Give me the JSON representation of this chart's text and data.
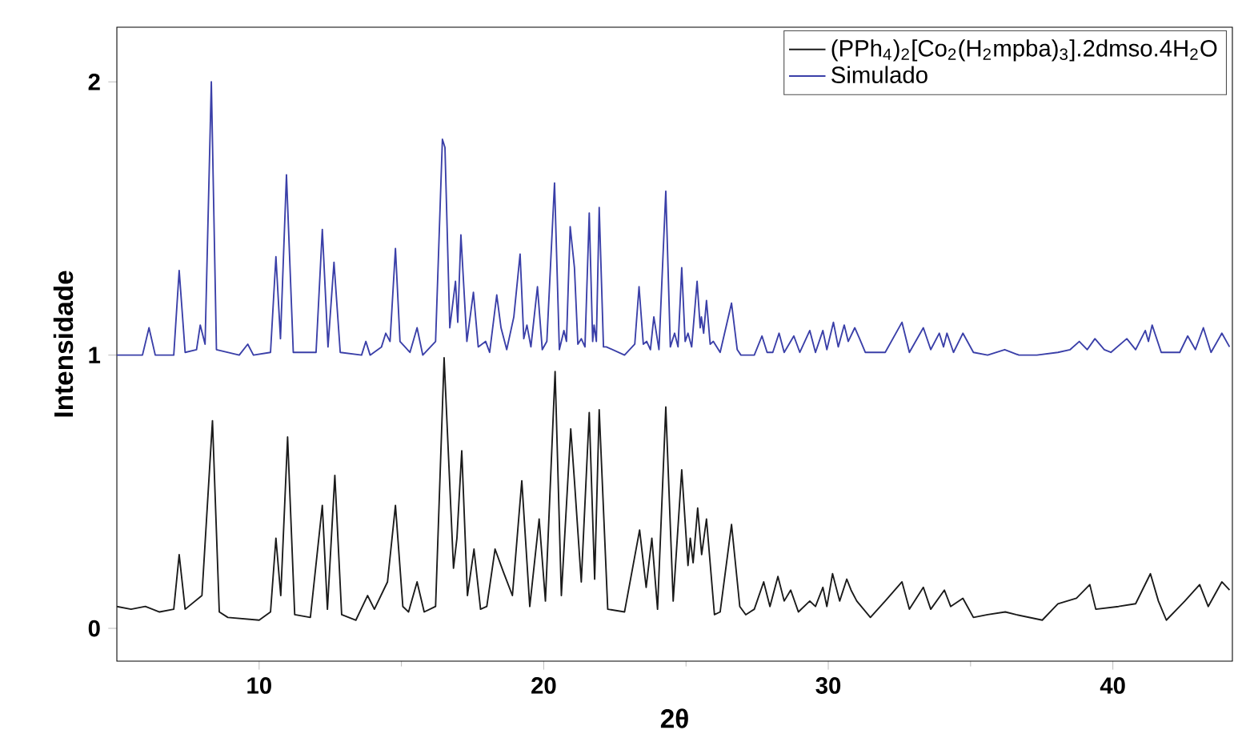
{
  "chart_data": {
    "type": "line",
    "xlabel": "2θ",
    "ylabel": "Intensidade",
    "xlim": [
      5,
      44.2
    ],
    "ylim": [
      -0.12,
      2.2
    ],
    "xticks": [
      10,
      20,
      30,
      40
    ],
    "yticks": [
      0,
      1,
      2
    ],
    "legend": "top right",
    "grid": false,
    "series": [
      {
        "name": "(PPh$_{4}$)$_{2}$[Co$_{2}$(H$_{2}$mpba)$_{3}$].2dmso.4H$_{2}$O",
        "color": "#1a1a1a",
        "x": [
          5.0,
          5.5,
          6.0,
          6.5,
          7.0,
          7.19,
          7.4,
          7.99,
          8.36,
          8.6,
          8.9,
          10.0,
          10.4,
          10.59,
          10.76,
          11.0,
          11.25,
          11.8,
          12.22,
          12.4,
          12.66,
          12.9,
          13.4,
          13.81,
          14.05,
          14.51,
          14.79,
          15.05,
          15.25,
          15.55,
          15.8,
          16.2,
          16.5,
          16.83,
          16.95,
          17.12,
          17.32,
          17.55,
          17.78,
          18.0,
          18.29,
          18.57,
          18.9,
          19.23,
          19.51,
          19.84,
          20.06,
          20.4,
          20.62,
          20.95,
          21.08,
          21.32,
          21.6,
          21.79,
          21.95,
          22.25,
          22.84,
          23.37,
          23.6,
          23.8,
          24.0,
          24.29,
          24.55,
          24.85,
          25.07,
          25.15,
          25.25,
          25.41,
          25.55,
          25.72,
          26.0,
          26.2,
          26.6,
          26.89,
          27.1,
          27.4,
          27.73,
          27.95,
          28.23,
          28.45,
          28.68,
          28.95,
          29.35,
          29.55,
          29.81,
          29.95,
          30.15,
          30.4,
          30.65,
          30.8,
          31.0,
          31.48,
          32.0,
          32.59,
          32.85,
          33.34,
          33.6,
          34.08,
          34.3,
          34.73,
          35.1,
          35.6,
          36.22,
          36.6,
          37.52,
          38.07,
          38.72,
          39.19,
          39.4,
          40.2,
          40.8,
          41.32,
          41.6,
          41.88,
          42.53,
          43.05,
          43.35,
          43.83,
          44.1
        ],
        "values": [
          0.08,
          0.07,
          0.08,
          0.06,
          0.07,
          0.27,
          0.07,
          0.12,
          0.76,
          0.06,
          0.04,
          0.03,
          0.06,
          0.33,
          0.12,
          0.7,
          0.05,
          0.04,
          0.45,
          0.07,
          0.56,
          0.05,
          0.03,
          0.12,
          0.07,
          0.17,
          0.45,
          0.08,
          0.06,
          0.17,
          0.06,
          0.08,
          0.99,
          0.22,
          0.33,
          0.65,
          0.12,
          0.29,
          0.07,
          0.08,
          0.29,
          0.21,
          0.12,
          0.54,
          0.08,
          0.4,
          0.1,
          0.94,
          0.12,
          0.73,
          0.54,
          0.17,
          0.79,
          0.18,
          0.8,
          0.07,
          0.06,
          0.36,
          0.15,
          0.33,
          0.07,
          0.81,
          0.1,
          0.58,
          0.23,
          0.33,
          0.24,
          0.44,
          0.27,
          0.4,
          0.05,
          0.06,
          0.38,
          0.08,
          0.05,
          0.07,
          0.17,
          0.08,
          0.19,
          0.1,
          0.14,
          0.06,
          0.1,
          0.08,
          0.15,
          0.08,
          0.2,
          0.1,
          0.18,
          0.14,
          0.1,
          0.04,
          0.1,
          0.17,
          0.07,
          0.15,
          0.07,
          0.14,
          0.08,
          0.11,
          0.04,
          0.05,
          0.06,
          0.05,
          0.03,
          0.09,
          0.11,
          0.16,
          0.07,
          0.08,
          0.09,
          0.2,
          0.1,
          0.03,
          0.1,
          0.16,
          0.08,
          0.17,
          0.14
        ]
      },
      {
        "name": "Simulado",
        "color": "#3a3fa8",
        "x": [
          5.0,
          5.9,
          6.13,
          6.35,
          7.0,
          7.19,
          7.4,
          7.8,
          7.93,
          8.1,
          8.32,
          8.5,
          9.3,
          9.6,
          9.8,
          10.4,
          10.59,
          10.75,
          10.96,
          11.2,
          12.0,
          12.22,
          12.42,
          12.63,
          12.85,
          13.6,
          13.75,
          13.9,
          14.3,
          14.45,
          14.6,
          14.79,
          14.95,
          15.3,
          15.55,
          15.75,
          16.2,
          16.44,
          16.53,
          16.7,
          16.9,
          16.98,
          17.09,
          17.3,
          17.53,
          17.7,
          17.96,
          18.1,
          18.35,
          18.5,
          18.7,
          18.95,
          19.17,
          19.3,
          19.41,
          19.55,
          19.78,
          19.95,
          20.11,
          20.38,
          20.55,
          20.71,
          20.8,
          20.93,
          21.08,
          21.2,
          21.32,
          21.45,
          21.6,
          21.72,
          21.77,
          21.85,
          21.95,
          22.1,
          22.2,
          22.84,
          23.2,
          23.35,
          23.5,
          23.62,
          23.75,
          23.87,
          24.05,
          24.29,
          24.45,
          24.6,
          24.72,
          24.85,
          24.97,
          25.07,
          25.2,
          25.39,
          25.5,
          25.54,
          25.62,
          25.72,
          25.85,
          25.96,
          26.2,
          26.6,
          26.8,
          26.93,
          27.4,
          27.67,
          27.85,
          28.05,
          28.27,
          28.45,
          28.79,
          29.0,
          29.35,
          29.55,
          29.81,
          29.95,
          30.18,
          30.35,
          30.56,
          30.7,
          30.93,
          31.1,
          31.3,
          32.0,
          32.59,
          32.85,
          33.34,
          33.6,
          33.9,
          34.05,
          34.17,
          34.4,
          34.73,
          35.1,
          35.6,
          36.2,
          36.7,
          37.33,
          38.07,
          38.5,
          38.82,
          39.1,
          39.37,
          39.7,
          39.93,
          40.49,
          40.8,
          41.14,
          41.25,
          41.38,
          41.7,
          42.35,
          42.63,
          42.9,
          43.18,
          43.45,
          43.83,
          44.1
        ],
        "values": [
          1.0,
          1.0,
          1.1,
          1.0,
          1.0,
          1.31,
          1.01,
          1.02,
          1.11,
          1.04,
          2.0,
          1.02,
          1.0,
          1.04,
          1.0,
          1.01,
          1.36,
          1.06,
          1.66,
          1.01,
          1.01,
          1.46,
          1.03,
          1.34,
          1.01,
          1.0,
          1.05,
          1.0,
          1.03,
          1.08,
          1.05,
          1.39,
          1.05,
          1.01,
          1.1,
          1.0,
          1.05,
          1.79,
          1.76,
          1.1,
          1.27,
          1.12,
          1.44,
          1.05,
          1.23,
          1.03,
          1.05,
          1.01,
          1.22,
          1.1,
          1.02,
          1.14,
          1.37,
          1.06,
          1.11,
          1.03,
          1.25,
          1.02,
          1.05,
          1.63,
          1.02,
          1.09,
          1.05,
          1.47,
          1.32,
          1.04,
          1.06,
          1.03,
          1.52,
          1.05,
          1.11,
          1.05,
          1.54,
          1.03,
          1.03,
          1.0,
          1.04,
          1.25,
          1.04,
          1.05,
          1.02,
          1.14,
          1.02,
          1.6,
          1.03,
          1.08,
          1.03,
          1.32,
          1.05,
          1.08,
          1.03,
          1.27,
          1.1,
          1.14,
          1.08,
          1.2,
          1.04,
          1.05,
          1.01,
          1.19,
          1.02,
          1.0,
          1.0,
          1.07,
          1.01,
          1.01,
          1.08,
          1.01,
          1.07,
          1.01,
          1.09,
          1.01,
          1.09,
          1.02,
          1.12,
          1.03,
          1.11,
          1.05,
          1.1,
          1.06,
          1.01,
          1.01,
          1.12,
          1.01,
          1.1,
          1.02,
          1.08,
          1.03,
          1.08,
          1.01,
          1.08,
          1.01,
          1.0,
          1.02,
          1.0,
          1.0,
          1.01,
          1.02,
          1.05,
          1.02,
          1.06,
          1.02,
          1.01,
          1.06,
          1.02,
          1.09,
          1.05,
          1.11,
          1.01,
          1.01,
          1.07,
          1.02,
          1.1,
          1.01,
          1.08,
          1.03
        ]
      }
    ]
  }
}
